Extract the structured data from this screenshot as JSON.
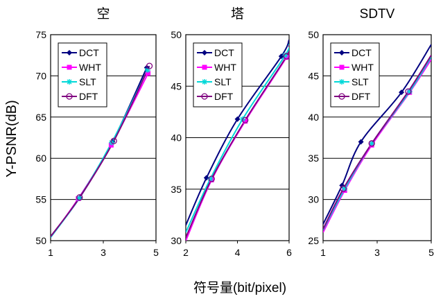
{
  "figure": {
    "ylabel": "Y-PSNR(dB)",
    "xlabel": "符号量(bit/pixel)"
  },
  "chart_data": [
    {
      "type": "line",
      "title": "空",
      "xlabel": "符号量(bit/pixel)",
      "ylabel": "Y-PSNR(dB)",
      "xlim": [
        1,
        5
      ],
      "ylim": [
        50,
        75
      ],
      "xticks": [
        1,
        3,
        5
      ],
      "yticks": [
        50,
        55,
        60,
        65,
        70,
        75
      ],
      "grid": "horizontal",
      "legend": "top-left",
      "series": [
        {
          "name": "DCT",
          "color": "#000080",
          "marker": "diamond",
          "points": [
            [
              1.0,
              50.5
            ],
            [
              2.1,
              55.2
            ],
            [
              3.35,
              62.0
            ],
            [
              4.65,
              71.0
            ]
          ]
        },
        {
          "name": "WHT",
          "color": "#ff00ff",
          "marker": "square",
          "points": [
            [
              1.0,
              50.4
            ],
            [
              2.05,
              55.1
            ],
            [
              3.3,
              61.6
            ],
            [
              4.7,
              70.3
            ]
          ]
        },
        {
          "name": "SLT",
          "color": "#00d8d8",
          "marker": "star",
          "points": [
            [
              1.0,
              50.4
            ],
            [
              2.08,
              55.15
            ],
            [
              3.32,
              61.9
            ],
            [
              4.68,
              70.7
            ]
          ]
        },
        {
          "name": "DFT",
          "color": "#800080",
          "marker": "circle",
          "points": [
            [
              1.0,
              50.5
            ],
            [
              2.1,
              55.25
            ],
            [
              3.4,
              62.1
            ],
            [
              4.75,
              71.2
            ]
          ]
        }
      ]
    },
    {
      "type": "line",
      "title": "塔",
      "xlim": [
        2,
        6
      ],
      "ylim": [
        30,
        50
      ],
      "xticks": [
        2,
        4,
        6
      ],
      "yticks": [
        30,
        35,
        40,
        45,
        50
      ],
      "grid": "horizontal",
      "legend": "top-left",
      "series": [
        {
          "name": "DCT",
          "color": "#000080",
          "marker": "diamond",
          "points": [
            [
              2.0,
              31.5
            ],
            [
              2.8,
              36.1
            ],
            [
              4.0,
              41.8
            ],
            [
              5.7,
              47.9
            ],
            [
              6.0,
              49.5
            ]
          ]
        },
        {
          "name": "WHT",
          "color": "#ff00ff",
          "marker": "square",
          "points": [
            [
              2.0,
              30.0
            ],
            [
              3.0,
              35.9
            ],
            [
              4.3,
              41.6
            ],
            [
              5.9,
              47.8
            ],
            [
              6.0,
              48.7
            ]
          ]
        },
        {
          "name": "SLT",
          "color": "#00d8d8",
          "marker": "star",
          "points": [
            [
              2.0,
              30.8
            ],
            [
              2.95,
              36.0
            ],
            [
              4.2,
              41.8
            ],
            [
              5.85,
              48.0
            ],
            [
              6.0,
              49.1
            ]
          ]
        },
        {
          "name": "DFT",
          "color": "#800080",
          "marker": "circle",
          "points": [
            [
              2.0,
              30.3
            ],
            [
              3.0,
              36.0
            ],
            [
              4.3,
              41.7
            ],
            [
              5.9,
              47.9
            ],
            [
              6.0,
              48.9
            ]
          ]
        }
      ]
    },
    {
      "type": "line",
      "title": "SDTV",
      "xlim": [
        1,
        5
      ],
      "ylim": [
        25,
        50
      ],
      "xticks": [
        1,
        3,
        5
      ],
      "yticks": [
        25,
        30,
        35,
        40,
        45,
        50
      ],
      "grid": "horizontal",
      "legend": "top-left",
      "series": [
        {
          "name": "DCT",
          "color": "#000080",
          "marker": "diamond",
          "points": [
            [
              1.0,
              27.0
            ],
            [
              1.7,
              31.7
            ],
            [
              2.4,
              37.0
            ],
            [
              3.9,
              43.0
            ],
            [
              5.0,
              48.8
            ]
          ]
        },
        {
          "name": "WHT",
          "color": "#ff00ff",
          "marker": "square",
          "points": [
            [
              1.0,
              26.0
            ],
            [
              1.8,
              31.1
            ],
            [
              2.8,
              36.6
            ],
            [
              4.2,
              43.0
            ],
            [
              5.0,
              47.0
            ]
          ]
        },
        {
          "name": "SLT",
          "color": "#00d8d8",
          "marker": "star",
          "points": [
            [
              1.0,
              26.3
            ],
            [
              1.8,
              31.3
            ],
            [
              2.8,
              36.8
            ],
            [
              4.2,
              43.1
            ],
            [
              5.0,
              47.3
            ]
          ]
        },
        {
          "name": "DFT",
          "color": "#800080",
          "marker": "circle",
          "points": [
            [
              1.0,
              26.4
            ],
            [
              1.75,
              31.3
            ],
            [
              2.8,
              36.8
            ],
            [
              4.15,
              43.1
            ],
            [
              5.0,
              47.5
            ]
          ]
        }
      ]
    }
  ]
}
